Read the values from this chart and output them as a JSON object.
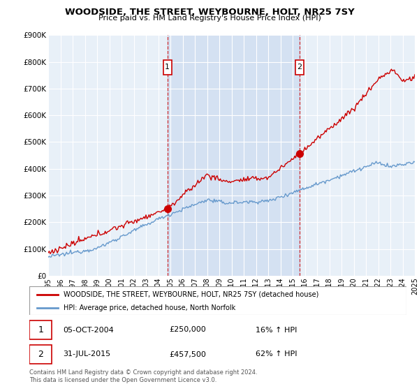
{
  "title": "WOODSIDE, THE STREET, WEYBOURNE, HOLT, NR25 7SY",
  "subtitle": "Price paid vs. HM Land Registry's House Price Index (HPI)",
  "legend_label_red": "WOODSIDE, THE STREET, WEYBOURNE, HOLT, NR25 7SY (detached house)",
  "legend_label_blue": "HPI: Average price, detached house, North Norfolk",
  "transaction1_date": "05-OCT-2004",
  "transaction1_price": "£250,000",
  "transaction1_hpi": "16% ↑ HPI",
  "transaction2_date": "31-JUL-2015",
  "transaction2_price": "£457,500",
  "transaction2_hpi": "62% ↑ HPI",
  "footer": "Contains HM Land Registry data © Crown copyright and database right 2024.\nThis data is licensed under the Open Government Licence v3.0.",
  "ylim": [
    0,
    900000
  ],
  "yticks": [
    0,
    100000,
    200000,
    300000,
    400000,
    500000,
    600000,
    700000,
    800000,
    900000
  ],
  "ytick_labels": [
    "£0",
    "£100K",
    "£200K",
    "£300K",
    "£400K",
    "£500K",
    "£600K",
    "£700K",
    "£800K",
    "£900K"
  ],
  "red_color": "#cc0000",
  "blue_color": "#6699cc",
  "bg_color": "#ddeeff",
  "chart_bg": "#e8f0f8",
  "vline1_x": 2004.75,
  "vline2_x": 2015.58,
  "marker1_x": 2004.75,
  "marker1_y": 250000,
  "marker2_x": 2015.58,
  "marker2_y": 457500,
  "xmin": 1995,
  "xmax": 2025
}
